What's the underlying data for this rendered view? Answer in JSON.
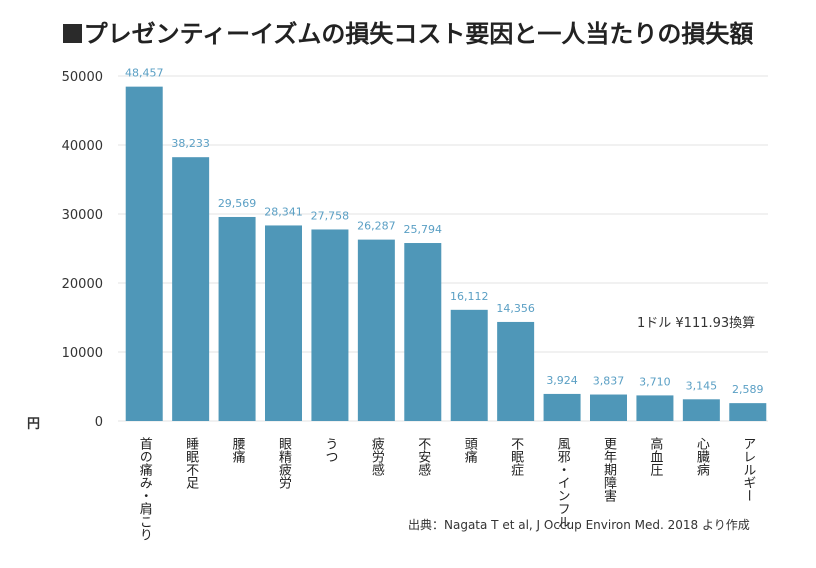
{
  "chart_data": {
    "type": "bar",
    "title": "プレゼンティーイズムの損失コスト要因と一人当たりの損失額",
    "ylabel": "円",
    "ylim": [
      0,
      50000
    ],
    "yticks": [
      "0",
      "10000",
      "20000",
      "30000",
      "40000",
      "50000"
    ],
    "categories": [
      "首の痛み・肩こり",
      "睡眠不足",
      "腰痛",
      "眼精疲労",
      "うつ",
      "疲労感",
      "不安感",
      "頭痛",
      "不眠症",
      "風邪・インフル",
      "更年期障害",
      "高血圧",
      "心臓病",
      "アレルギー"
    ],
    "values": [
      48457,
      38233,
      29569,
      28341,
      27758,
      26287,
      25794,
      16112,
      14356,
      3924,
      3837,
      3710,
      3145,
      2589
    ],
    "value_labels": [
      "48,457",
      "38,233",
      "29,569",
      "28,341",
      "27,758",
      "26,287",
      "25,794",
      "16,112",
      "14,356",
      "3,924",
      "3,837",
      "3,710",
      "3,145",
      "2,589"
    ],
    "note": "1ドル ¥111.93換算",
    "source": "出典：Nagata T et al, J Occup Environ Med. 2018 より作成",
    "grid": true,
    "colors": {
      "bar": "#4f97b8",
      "value_label": "#5a9fc4",
      "grid": "#e3e3e3"
    }
  }
}
